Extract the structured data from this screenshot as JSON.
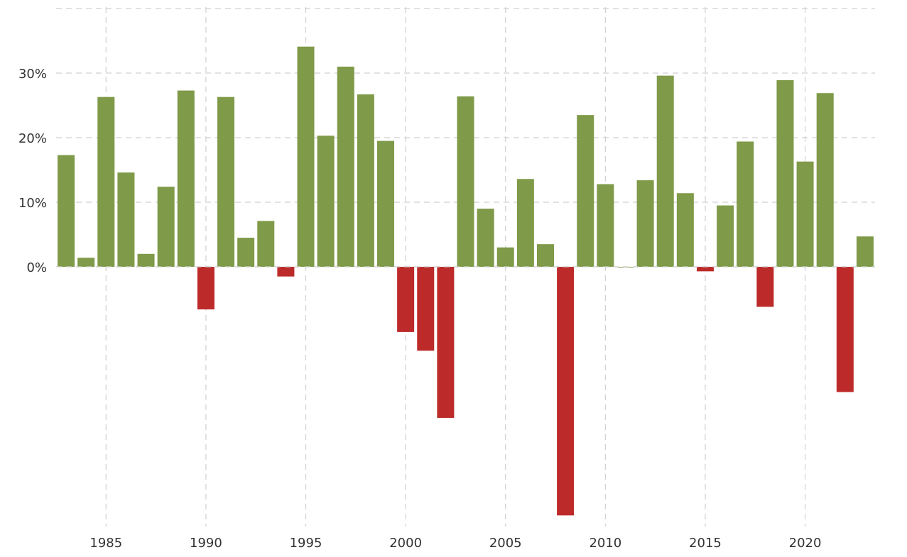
{
  "chart_data": {
    "type": "bar",
    "title": "",
    "xlabel": "",
    "ylabel": "",
    "years": [
      1983,
      1984,
      1985,
      1986,
      1987,
      1988,
      1989,
      1990,
      1991,
      1992,
      1993,
      1994,
      1995,
      1996,
      1997,
      1998,
      1999,
      2000,
      2001,
      2002,
      2003,
      2004,
      2005,
      2006,
      2007,
      2008,
      2009,
      2010,
      2011,
      2012,
      2013,
      2014,
      2015,
      2016,
      2017,
      2018,
      2019,
      2020,
      2021,
      2022,
      2023
    ],
    "values": [
      17.3,
      1.4,
      26.3,
      14.6,
      2.0,
      12.4,
      27.3,
      -6.6,
      26.3,
      4.5,
      7.1,
      -1.5,
      34.1,
      20.3,
      31.0,
      26.7,
      19.5,
      -10.1,
      -13.0,
      -23.4,
      26.4,
      9.0,
      3.0,
      13.6,
      3.5,
      -38.5,
      23.5,
      12.8,
      0.0,
      13.4,
      29.6,
      11.4,
      -0.7,
      9.5,
      19.4,
      -6.2,
      28.9,
      16.3,
      26.9,
      -19.4,
      4.7
    ],
    "xticks": [
      {
        "value": 1985,
        "label": "1985"
      },
      {
        "value": 1990,
        "label": "1990"
      },
      {
        "value": 1995,
        "label": "1995"
      },
      {
        "value": 2000,
        "label": "2000"
      },
      {
        "value": 2005,
        "label": "2005"
      },
      {
        "value": 2010,
        "label": "2010"
      },
      {
        "value": 2015,
        "label": "2015"
      },
      {
        "value": 2020,
        "label": "2020"
      }
    ],
    "yticks": [
      {
        "value": 0,
        "label": "0%"
      },
      {
        "value": 10,
        "label": "10%"
      },
      {
        "value": 20,
        "label": "20%"
      },
      {
        "value": 30,
        "label": "30%"
      }
    ],
    "ylim": [
      -39,
      40
    ],
    "xlim": [
      1982.5,
      2023.5
    ],
    "grid": true,
    "legend": "none",
    "colors": {
      "positive": "#7f9a48",
      "negative": "#bc2b29",
      "grid": "#d0d0d0",
      "tick_text": "#333333"
    }
  }
}
